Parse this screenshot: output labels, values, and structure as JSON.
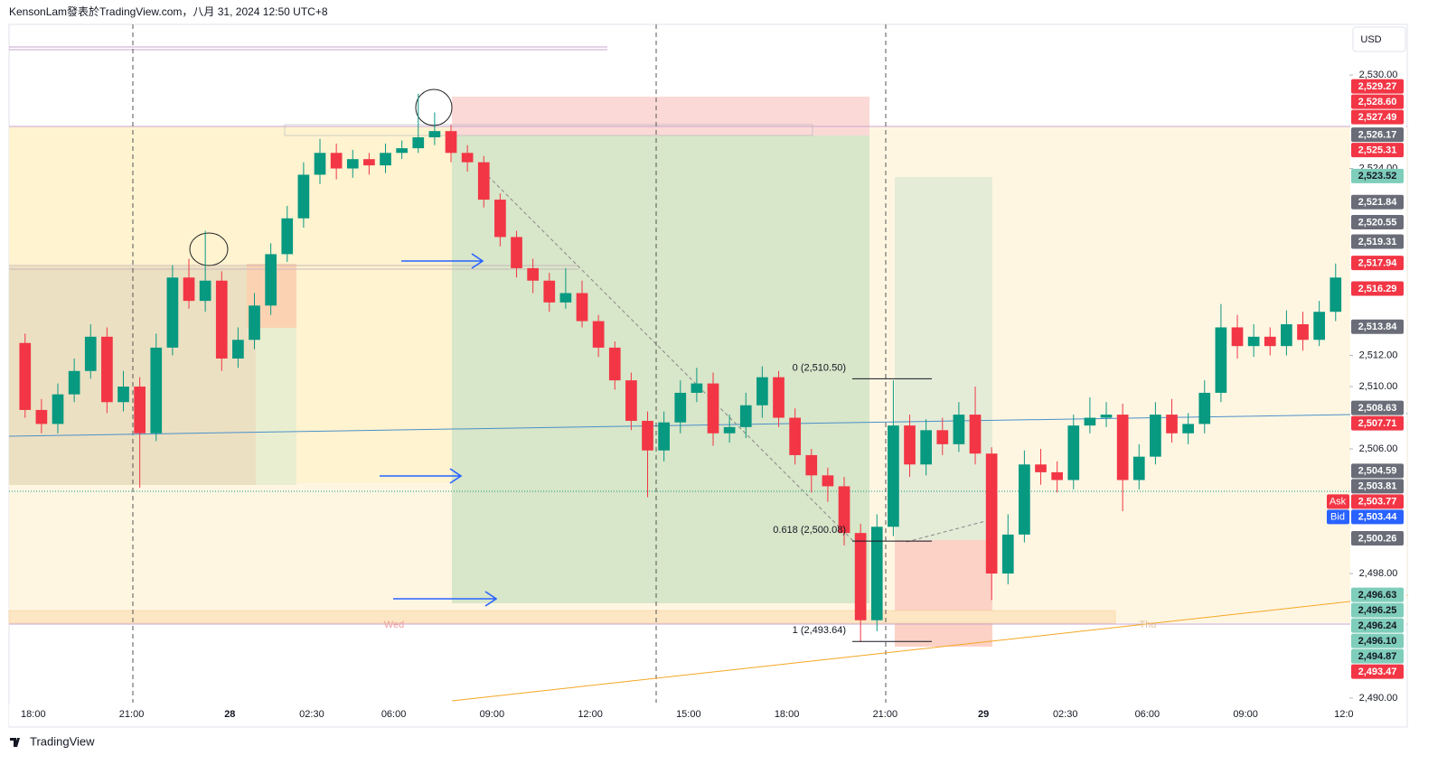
{
  "header": {
    "text": "KensonLam發表於TradingView.com，八月 31, 2024 12:50 UTC+8",
    "currency": "USD"
  },
  "footer": {
    "brand": "TradingView"
  },
  "chart_data": {
    "type": "candlestick",
    "x": [
      17.5,
      18,
      18.5,
      19,
      19.5,
      20,
      20.5,
      21,
      21.5,
      22,
      22.5,
      23,
      23.5,
      24,
      24.5,
      25,
      25.5,
      26,
      26.5,
      27,
      27.5,
      28,
      28.5,
      29,
      29.5,
      30,
      30.5,
      31,
      31.5,
      32,
      32.5,
      33,
      33.5,
      34,
      34.5,
      35,
      35.5,
      36,
      36.5,
      37,
      37.5,
      38,
      38.5,
      39,
      39.5,
      40,
      40.5,
      41,
      41.5,
      42,
      42.5,
      43,
      43.5,
      44,
      44.5,
      45,
      45.5,
      46,
      46.5,
      47,
      47.5,
      48,
      48.5,
      49,
      49.5,
      50,
      50.5,
      51,
      51.5,
      52,
      52.5,
      53,
      53.5,
      54,
      54.5,
      55,
      55.5,
      56,
      56.5,
      57,
      57.5
    ],
    "open": [
      2512.8,
      2508.5,
      2507.6,
      2509.5,
      2511.0,
      2513.2,
      2509.0,
      2510.0,
      2507.0,
      2512.5,
      2517.0,
      2515.5,
      2516.8,
      2511.8,
      2513.0,
      2515.2,
      2518.5,
      2520.8,
      2523.6,
      2525.0,
      2524.0,
      2524.6,
      2524.2,
      2525.0,
      2525.3,
      2526.0,
      2526.4,
      2525.0,
      2524.4,
      2522.0,
      2519.6,
      2517.6,
      2516.8,
      2515.4,
      2516.0,
      2514.2,
      2512.5,
      2510.4,
      2507.8,
      2505.9,
      2507.7,
      2509.6,
      2510.2,
      2507.0,
      2507.4,
      2508.8,
      2510.6,
      2508.0,
      2505.6,
      2504.3,
      2503.6,
      2500.6,
      2495.0,
      2501.0,
      2507.5,
      2505.0,
      2507.2,
      2506.3,
      2508.2,
      2505.7,
      2498.0,
      2500.5,
      2505.0,
      2504.5,
      2504.0,
      2507.5,
      2508.0,
      2508.2,
      2504.0,
      2505.5,
      2508.2,
      2507.0,
      2507.6,
      2509.6,
      2513.8,
      2512.6,
      2513.2,
      2512.6,
      2514.0,
      2513.0,
      2514.8
    ],
    "high": [
      2513.4,
      2509.2,
      2510.2,
      2511.8,
      2514.0,
      2513.8,
      2511.0,
      2510.6,
      2513.4,
      2517.8,
      2518.2,
      2520.0,
      2517.4,
      2513.8,
      2516.0,
      2519.2,
      2521.6,
      2524.4,
      2525.9,
      2525.6,
      2525.2,
      2525.0,
      2525.6,
      2525.8,
      2528.8,
      2527.6,
      2526.8,
      2525.5,
      2524.8,
      2522.4,
      2520.0,
      2518.2,
      2517.3,
      2517.6,
      2516.8,
      2514.6,
      2512.9,
      2510.9,
      2508.4,
      2508.4,
      2510.4,
      2511.2,
      2510.9,
      2508.2,
      2509.6,
      2511.3,
      2511.0,
      2508.6,
      2506.0,
      2504.8,
      2504.2,
      2501.2,
      2501.8,
      2510.4,
      2508.2,
      2507.9,
      2508.0,
      2509.0,
      2510.0,
      2506.1,
      2501.8,
      2505.9,
      2506.0,
      2505.2,
      2508.2,
      2509.3,
      2509.0,
      2508.9,
      2506.3,
      2509.0,
      2509.2,
      2508.3,
      2510.4,
      2515.3,
      2514.6,
      2514.0,
      2513.8,
      2514.9,
      2514.8,
      2515.5,
      2517.9
    ],
    "low": [
      2508.0,
      2507.0,
      2507.0,
      2509.0,
      2510.5,
      2508.3,
      2508.4,
      2503.5,
      2506.5,
      2512.0,
      2515.0,
      2514.8,
      2511.0,
      2511.2,
      2512.4,
      2514.6,
      2518.0,
      2520.2,
      2523.0,
      2523.3,
      2523.4,
      2523.6,
      2523.7,
      2524.6,
      2525.0,
      2525.5,
      2524.4,
      2523.8,
      2521.5,
      2519.0,
      2517.0,
      2516.0,
      2514.8,
      2515.0,
      2513.8,
      2511.9,
      2509.8,
      2507.2,
      2502.9,
      2505.2,
      2507.0,
      2509.0,
      2506.2,
      2506.4,
      2506.7,
      2508.0,
      2507.4,
      2505.0,
      2503.2,
      2502.6,
      2499.8,
      2493.6,
      2494.3,
      2500.4,
      2504.2,
      2504.3,
      2505.6,
      2505.8,
      2505.0,
      2496.3,
      2497.3,
      2500.0,
      2503.7,
      2503.2,
      2503.4,
      2507.0,
      2507.4,
      2502.0,
      2503.4,
      2505.0,
      2506.4,
      2506.3,
      2507.0,
      2509.0,
      2511.8,
      2511.9,
      2512.0,
      2512.0,
      2512.3,
      2512.6,
      2514.2
    ],
    "close": [
      2508.5,
      2507.6,
      2509.5,
      2511.0,
      2513.2,
      2509.0,
      2510.0,
      2507.0,
      2512.5,
      2517.0,
      2515.5,
      2516.8,
      2511.8,
      2513.0,
      2515.2,
      2518.5,
      2520.8,
      2523.6,
      2525.0,
      2524.0,
      2524.6,
      2524.2,
      2525.0,
      2525.3,
      2526.0,
      2526.4,
      2525.0,
      2524.4,
      2522.0,
      2519.6,
      2517.6,
      2516.8,
      2515.4,
      2516.0,
      2514.2,
      2512.5,
      2510.4,
      2507.8,
      2505.9,
      2507.7,
      2509.6,
      2510.2,
      2507.0,
      2507.4,
      2508.8,
      2510.6,
      2508.0,
      2505.6,
      2504.3,
      2503.6,
      2500.6,
      2495.0,
      2501.0,
      2507.5,
      2505.0,
      2507.2,
      2506.3,
      2508.2,
      2505.7,
      2498.0,
      2500.5,
      2505.0,
      2504.5,
      2504.0,
      2507.5,
      2508.0,
      2508.2,
      2504.0,
      2505.5,
      2508.2,
      2507.0,
      2507.6,
      2509.6,
      2513.8,
      2512.6,
      2513.2,
      2512.6,
      2514.0,
      2513.0,
      2514.8,
      2517.0
    ],
    "up_color": "#089981",
    "down_color": "#f23645",
    "xlim": [
      17.26,
      58.17
    ],
    "xticks": [
      {
        "value": 18,
        "label": "18:00"
      },
      {
        "value": 21,
        "label": "21:00"
      },
      {
        "value": 24,
        "label": "28"
      },
      {
        "value": 26.5,
        "label": "02:30"
      },
      {
        "value": 29,
        "label": "06:00"
      },
      {
        "value": 32,
        "label": "09:00"
      },
      {
        "value": 35,
        "label": "12:00"
      },
      {
        "value": 38,
        "label": "15:00"
      },
      {
        "value": 41,
        "label": "18:00"
      },
      {
        "value": 44,
        "label": "21:00"
      },
      {
        "value": 47,
        "label": "29"
      },
      {
        "value": 49.5,
        "label": "02:30"
      },
      {
        "value": 52,
        "label": "06:00"
      },
      {
        "value": 55,
        "label": "09:00"
      },
      {
        "value": 58,
        "label": "12:0"
      }
    ],
    "ylim": [
      2489.71,
      2533.25
    ],
    "yticks": [
      {
        "value": 2490,
        "label": "2,490.00"
      },
      {
        "value": 2498,
        "label": "2,498.00"
      },
      {
        "value": 2506,
        "label": "2,506.00"
      },
      {
        "value": 2510,
        "label": "2,510.00"
      },
      {
        "value": 2512,
        "label": "2,512.00"
      },
      {
        "value": 2524,
        "label": "2,524.00"
      },
      {
        "value": 2530,
        "label": "2,530.00"
      }
    ],
    "price_labels": [
      {
        "value": 2529.27,
        "label": "2,529.27",
        "color": "#f23645"
      },
      {
        "value": 2528.6,
        "label": "2,528.60",
        "color": "#f23645"
      },
      {
        "value": 2527.49,
        "label": "2,527.49",
        "color": "#f23645"
      },
      {
        "value": 2526.17,
        "label": "2,526.17",
        "color": "#6a6d78"
      },
      {
        "value": 2525.31,
        "label": "2,525.31",
        "color": "#f23645"
      },
      {
        "value": 2523.52,
        "label": "2,523.52",
        "color": "#7fcdbb"
      },
      {
        "value": 2521.84,
        "label": "2,521.84",
        "color": "#6a6d78"
      },
      {
        "value": 2520.55,
        "label": "2,520.55",
        "color": "#6a6d78"
      },
      {
        "value": 2519.31,
        "label": "2,519.31",
        "color": "#6a6d78"
      },
      {
        "value": 2517.94,
        "label": "2,517.94",
        "color": "#f23645"
      },
      {
        "value": 2516.29,
        "label": "2,516.29",
        "color": "#f23645"
      },
      {
        "value": 2513.84,
        "label": "2,513.84",
        "color": "#6a6d78"
      },
      {
        "value": 2508.63,
        "label": "2,508.63",
        "color": "#6a6d78"
      },
      {
        "value": 2507.71,
        "label": "2,507.71",
        "color": "#f23645"
      },
      {
        "value": 2504.59,
        "label": "2,504.59",
        "color": "#6a6d78"
      },
      {
        "value": 2503.81,
        "label": "2,503.81",
        "color": "#6a6d78"
      },
      {
        "value": 2503.77,
        "label": "2,503.77",
        "color": "#f23645",
        "tag": "Ask"
      },
      {
        "value": 2503.44,
        "label": "2,503.44",
        "color": "#2962ff",
        "tag": "Bid"
      },
      {
        "value": 2500.26,
        "label": "2,500.26",
        "color": "#6a6d78"
      },
      {
        "value": 2496.63,
        "label": "2,496.63",
        "color": "#7fcdbb"
      },
      {
        "value": 2496.25,
        "label": "2,496.25",
        "color": "#7fcdbb"
      },
      {
        "value": 2496.24,
        "label": "2,496.24",
        "color": "#7fcdbb"
      },
      {
        "value": 2496.1,
        "label": "2,496.10",
        "color": "#7fcdbb"
      },
      {
        "value": 2494.87,
        "label": "2,494.87",
        "color": "#7fcdbb"
      },
      {
        "value": 2493.47,
        "label": "2,493.47",
        "color": "#f23645"
      }
    ],
    "fib_levels": [
      {
        "ratio": 0,
        "value": 2510.5,
        "label": "0 (2,510.50)"
      },
      {
        "ratio": 0.618,
        "value": 2500.08,
        "label": "0.618 (2,500.08)"
      },
      {
        "ratio": 1,
        "value": 2493.64,
        "label": "1 (2,493.64)"
      }
    ],
    "annotations": [
      "Wed",
      "Thu"
    ]
  }
}
